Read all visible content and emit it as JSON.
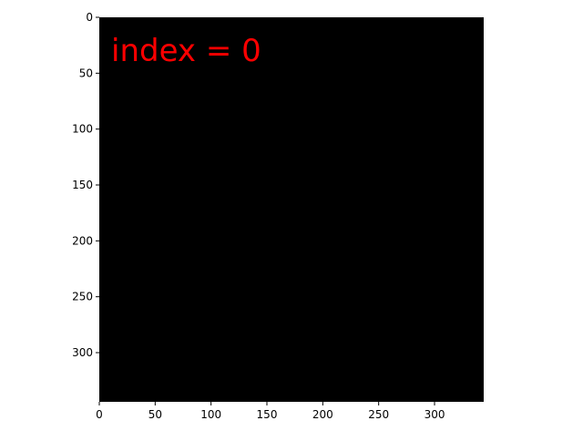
{
  "chart_data": {
    "type": "heatmap",
    "title": "",
    "xlabel": "",
    "ylabel": "",
    "xlim": [
      0,
      344
    ],
    "ylim": [
      344,
      0
    ],
    "image_fill": "#000000",
    "grid": false,
    "xticks": [
      0,
      50,
      100,
      150,
      200,
      250,
      300
    ],
    "yticks": [
      0,
      50,
      100,
      150,
      200,
      250,
      300
    ],
    "annotation": {
      "text": "index = 0",
      "color": "#ff0000"
    }
  }
}
